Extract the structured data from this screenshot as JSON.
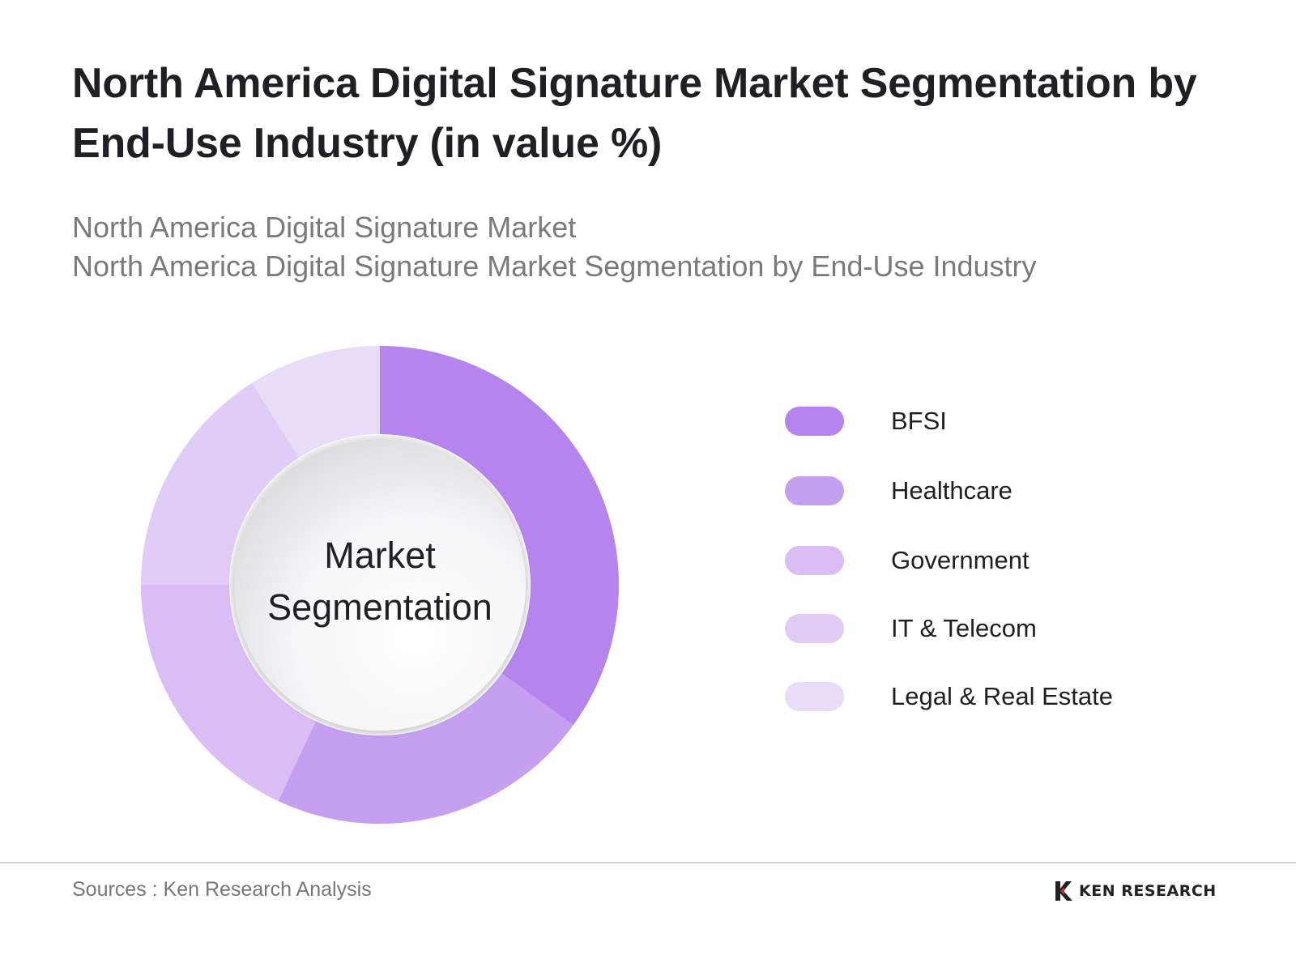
{
  "title": "North America Digital Signature Market Segmentation by End-Use Industry (in value %)",
  "subtitle_lines": [
    "North America Digital Signature Market",
    "North America Digital Signature Market Segmentation by End-Use Industry"
  ],
  "center_label": {
    "line1": "Market",
    "line2": "Segmentation"
  },
  "sources": "Sources : Ken Research Analysis",
  "brand": {
    "name": "KEN RESEARCH",
    "icon": "ken-research-logo-icon"
  },
  "colors": {
    "BFSI": "#b584ec",
    "Healthcare": "#c79ff0",
    "Government": "#dbbdf6",
    "IT & Telecom": "#e1ccf7",
    "Legal & Real Estate": "#e9dcf9"
  },
  "chart_data": {
    "type": "pie",
    "variant": "donut",
    "categories": [
      "BFSI",
      "Healthcare",
      "Government",
      "IT & Telecom",
      "Legal & Real Estate"
    ],
    "values": [
      35,
      22,
      18,
      16,
      9
    ],
    "legend_placement": "right"
  }
}
